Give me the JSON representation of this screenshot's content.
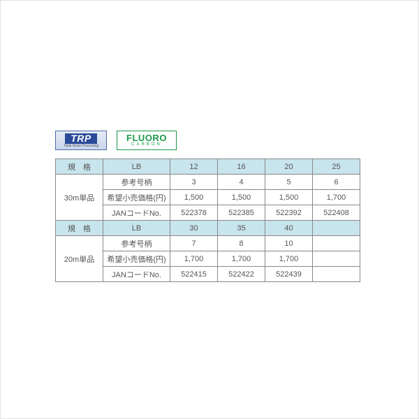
{
  "badges": {
    "trp": {
      "main": "TRP",
      "sub": "Triple Resin Processing"
    },
    "fluoro": {
      "main": "FLUORO",
      "sub": "CARBON"
    }
  },
  "table": {
    "spec_header": "規　格",
    "lb_header": "LB",
    "row_labels": {
      "ref": "参考号柄",
      "price": "希望小売価格(円)",
      "jan": "JANコードNo."
    },
    "sections": [
      {
        "spec": "30m単品",
        "lb": [
          "12",
          "16",
          "20",
          "25"
        ],
        "ref": [
          "3",
          "4",
          "5",
          "6"
        ],
        "price": [
          "1,500",
          "1,500",
          "1,500",
          "1,700"
        ],
        "jan": [
          "522378",
          "522385",
          "522392",
          "522408"
        ]
      },
      {
        "spec": "20m単品",
        "lb": [
          "30",
          "35",
          "40"
        ],
        "ref": [
          "7",
          "8",
          "10"
        ],
        "price": [
          "1,700",
          "1,700",
          "1,700"
        ],
        "jan": [
          "522415",
          "522422",
          "522439"
        ]
      }
    ]
  },
  "colors": {
    "header_bg": "#c8e4ec",
    "border": "#888888",
    "text": "#555555",
    "trp_border": "#4a6aa5",
    "trp_bg": "#2a4a9a",
    "fluoro": "#1a9a4a"
  }
}
